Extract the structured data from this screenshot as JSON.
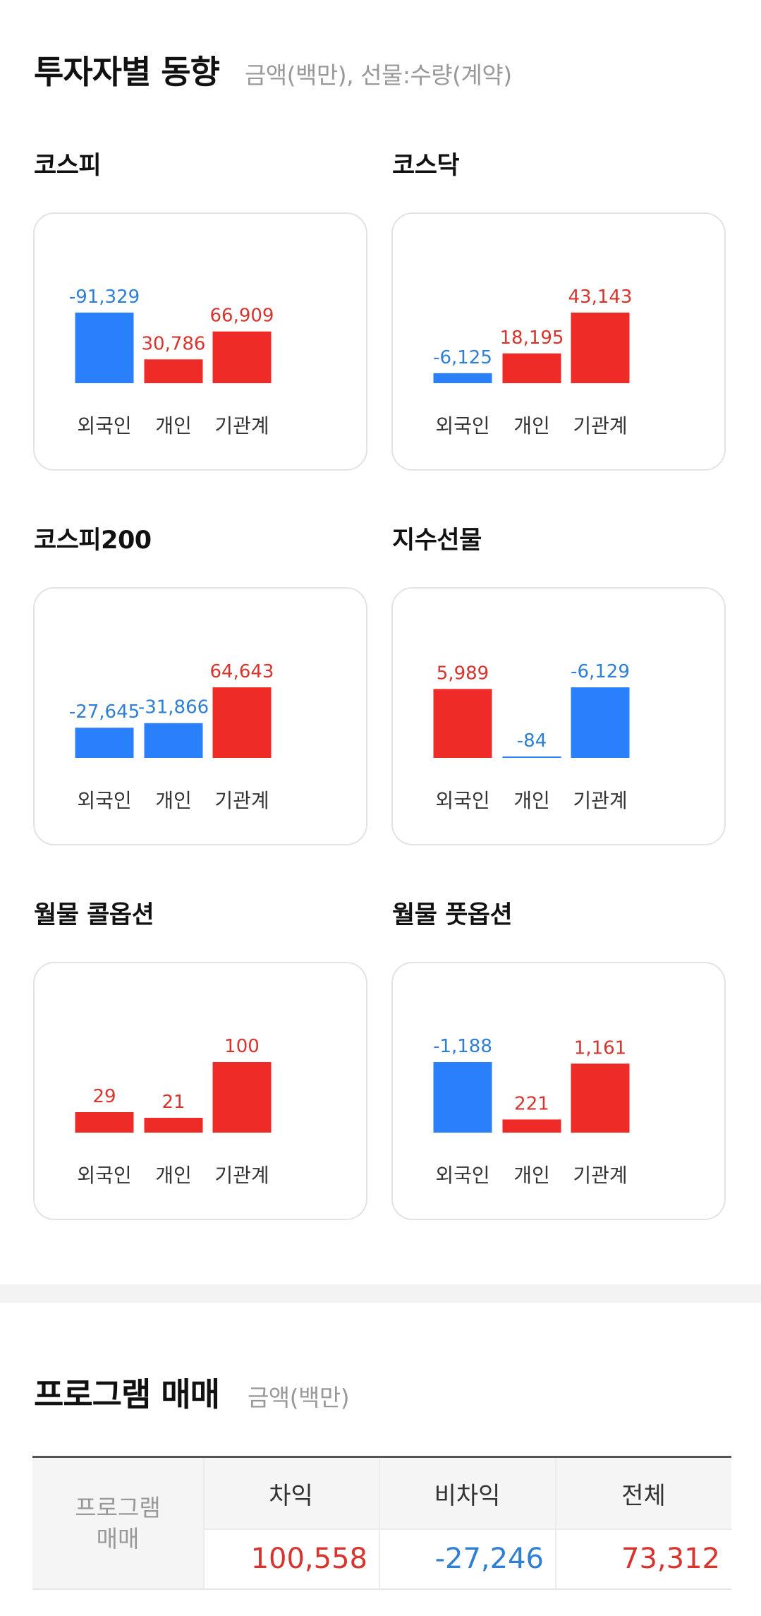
{
  "investor_section": {
    "title": "투자자별 동향",
    "subtitle": "금액(백만), 선물:수량(계약)"
  },
  "colors": {
    "positive": "#ee2b27",
    "negative": "#2a7ffb",
    "pos_text": "#d8342e",
    "neg_text": "#2e7fd6"
  },
  "chart_data": [
    {
      "type": "bar",
      "title": "코스피",
      "categories": [
        "외국인",
        "개인",
        "기관계"
      ],
      "values": [
        -91329,
        30786,
        66909
      ],
      "labels": [
        "-91,329",
        "30,786",
        "66,909"
      ]
    },
    {
      "type": "bar",
      "title": "코스닥",
      "categories": [
        "외국인",
        "개인",
        "기관계"
      ],
      "values": [
        -6125,
        18195,
        43143
      ],
      "labels": [
        "-6,125",
        "18,195",
        "43,143"
      ]
    },
    {
      "type": "bar",
      "title": "코스피200",
      "categories": [
        "외국인",
        "개인",
        "기관계"
      ],
      "values": [
        -27645,
        -31866,
        64643
      ],
      "labels": [
        "-27,645",
        "-31,866",
        "64,643"
      ]
    },
    {
      "type": "bar",
      "title": "지수선물",
      "categories": [
        "외국인",
        "개인",
        "기관계"
      ],
      "values": [
        5989,
        -84,
        -6129
      ],
      "labels": [
        "5,989",
        "-84",
        "-6,129"
      ]
    },
    {
      "type": "bar",
      "title": "월물 콜옵션",
      "categories": [
        "외국인",
        "개인",
        "기관계"
      ],
      "values": [
        29,
        21,
        100
      ],
      "labels": [
        "29",
        "21",
        "100"
      ]
    },
    {
      "type": "bar",
      "title": "월물 풋옵션",
      "categories": [
        "외국인",
        "개인",
        "기관계"
      ],
      "values": [
        -1188,
        221,
        1161
      ],
      "labels": [
        "-1,188",
        "221",
        "1,161"
      ]
    }
  ],
  "program_section": {
    "title": "프로그램 매매",
    "subtitle": "금액(백만)",
    "row_header_line1": "프로그램",
    "row_header_line2": "매매",
    "columns": [
      "차익",
      "비차익",
      "전체"
    ],
    "values": [
      "100,558",
      "-27,246",
      "73,312"
    ],
    "value_signs": [
      1,
      -1,
      1
    ]
  }
}
